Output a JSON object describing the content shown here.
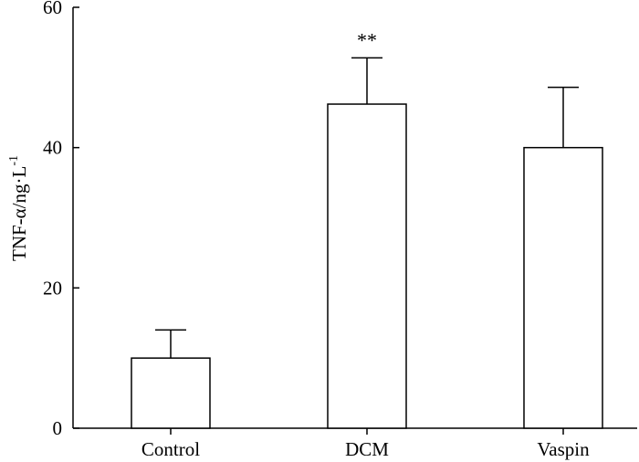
{
  "chart_data": {
    "type": "bar",
    "title": "",
    "xlabel": "",
    "ylabel": "TNF-α/ng·L",
    "ylabel_superscript": "-1",
    "categories": [
      "Control",
      "DCM",
      "Vaspin"
    ],
    "values": [
      10,
      46.2,
      40
    ],
    "errors": [
      4,
      6.6,
      8.6
    ],
    "annotations": [
      "",
      "**",
      ""
    ],
    "ylim": [
      0,
      60
    ],
    "yticks": [
      0,
      20,
      40,
      60
    ],
    "grid": false,
    "bar_fill": "#ffffff",
    "bar_stroke": "#000000"
  }
}
